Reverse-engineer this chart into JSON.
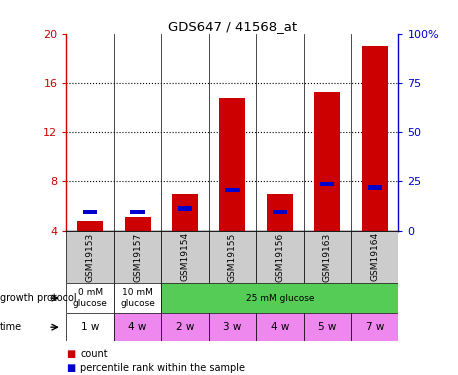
{
  "title": "GDS647 / 41568_at",
  "samples": [
    "GSM19153",
    "GSM19157",
    "GSM19154",
    "GSM19155",
    "GSM19156",
    "GSM19163",
    "GSM19164"
  ],
  "count_values": [
    4.8,
    5.1,
    7.0,
    14.8,
    7.0,
    15.3,
    19.0
  ],
  "percentile_values": [
    5.5,
    5.5,
    5.8,
    7.3,
    5.5,
    7.8,
    7.5
  ],
  "ylim_left": [
    4,
    20
  ],
  "ylim_right": [
    0,
    100
  ],
  "yticks_left": [
    4,
    8,
    12,
    16,
    20
  ],
  "yticks_right": [
    0,
    25,
    50,
    75,
    100
  ],
  "ytick_labels_right": [
    "0",
    "25",
    "50",
    "75",
    "100%"
  ],
  "time": [
    "1 w",
    "4 w",
    "2 w",
    "3 w",
    "4 w",
    "5 w",
    "7 w"
  ],
  "bar_color": "#cc0000",
  "percentile_color": "#0000cc",
  "left_tick_color": "#cc0000",
  "right_tick_color": "#0000cc",
  "sample_bg": "#cccccc",
  "green_color": "#55cc55",
  "white_color": "#ffffff",
  "pink_color": "#ee88ee",
  "time_colors_idx": [
    0,
    1,
    1,
    1,
    1,
    1,
    1
  ],
  "protocol_groups": [
    {
      "start": 0,
      "end": 0,
      "label": "0 mM\nglucose",
      "color": "#ffffff"
    },
    {
      "start": 1,
      "end": 1,
      "label": "10 mM\nglucose",
      "color": "#ffffff"
    },
    {
      "start": 2,
      "end": 6,
      "label": "25 mM glucose",
      "color": "#55cc55"
    }
  ]
}
